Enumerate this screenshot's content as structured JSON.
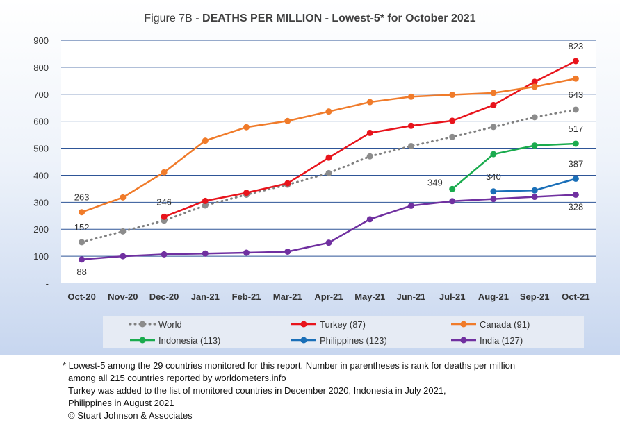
{
  "title": {
    "prefix": "Figure 7B - ",
    "main": "DEATHS PER MILLION - Lowest-5* for October 2021"
  },
  "chart_data": {
    "type": "line",
    "categories": [
      "Oct-20",
      "Nov-20",
      "Dec-20",
      "Jan-21",
      "Feb-21",
      "Mar-21",
      "Apr-21",
      "May-21",
      "Jun-21",
      "Jul-21",
      "Aug-21",
      "Sep-21",
      "Oct-21"
    ],
    "ylim": [
      0,
      900
    ],
    "yticks": [
      "-",
      "100",
      "200",
      "300",
      "400",
      "500",
      "600",
      "700",
      "800",
      "900"
    ],
    "grid": true,
    "legend_position": "bottom",
    "series": [
      {
        "name": "World",
        "color": "#7f7f7f",
        "dashed": true,
        "values": [
          152,
          192,
          232,
          288,
          328,
          365,
          408,
          470,
          508,
          542,
          579,
          615,
          643
        ]
      },
      {
        "name": "Turkey (87)",
        "color": "#e8141c",
        "dashed": false,
        "values": [
          null,
          null,
          246,
          305,
          335,
          370,
          465,
          557,
          583,
          602,
          660,
          746,
          823
        ]
      },
      {
        "name": "Canada (91)",
        "color": "#f07b2a",
        "dashed": false,
        "values": [
          263,
          318,
          411,
          528,
          578,
          601,
          636,
          671,
          691,
          698,
          705,
          728,
          758
        ]
      },
      {
        "name": "Indonesia (113)",
        "color": "#1aab4e",
        "dashed": false,
        "values": [
          null,
          null,
          null,
          null,
          null,
          null,
          null,
          null,
          null,
          349,
          478,
          510,
          517
        ]
      },
      {
        "name": "Philippines (123)",
        "color": "#1a6fb8",
        "dashed": false,
        "values": [
          null,
          null,
          null,
          null,
          null,
          null,
          null,
          null,
          null,
          null,
          340,
          344,
          387
        ]
      },
      {
        "name": "India (127)",
        "color": "#7030a0",
        "dashed": false,
        "values": [
          88,
          100,
          107,
          110,
          113,
          117,
          150,
          237,
          287,
          304,
          312,
          320,
          328
        ]
      }
    ],
    "annotations": [
      {
        "text": "263",
        "series": 2,
        "index": 0,
        "pos": "above"
      },
      {
        "text": "152",
        "series": 0,
        "index": 0,
        "pos": "above"
      },
      {
        "text": "88",
        "series": 5,
        "index": 0,
        "pos": "below"
      },
      {
        "text": "246",
        "series": 1,
        "index": 2,
        "pos": "above"
      },
      {
        "text": "349",
        "series": 3,
        "index": 9,
        "pos": "left"
      },
      {
        "text": "340",
        "series": 4,
        "index": 10,
        "pos": "above"
      },
      {
        "text": "823",
        "series": 1,
        "index": 12,
        "pos": "above"
      },
      {
        "text": "643",
        "series": 0,
        "index": 12,
        "pos": "above"
      },
      {
        "text": "517",
        "series": 3,
        "index": 12,
        "pos": "above"
      },
      {
        "text": "387",
        "series": 4,
        "index": 12,
        "pos": "above"
      },
      {
        "text": "328",
        "series": 5,
        "index": 12,
        "pos": "below"
      }
    ]
  },
  "footnote": [
    "* Lowest-5 among the 29 countries monitored for this report. Number in parentheses is rank for deaths per million",
    "among all 215 countries reported by worldometers.info",
    "Turkey was added to the list of monitored countries in December 2020, Indonesia in July 2021,",
    "Philippines in August 2021",
    "© Stuart Johnson & Associates"
  ]
}
